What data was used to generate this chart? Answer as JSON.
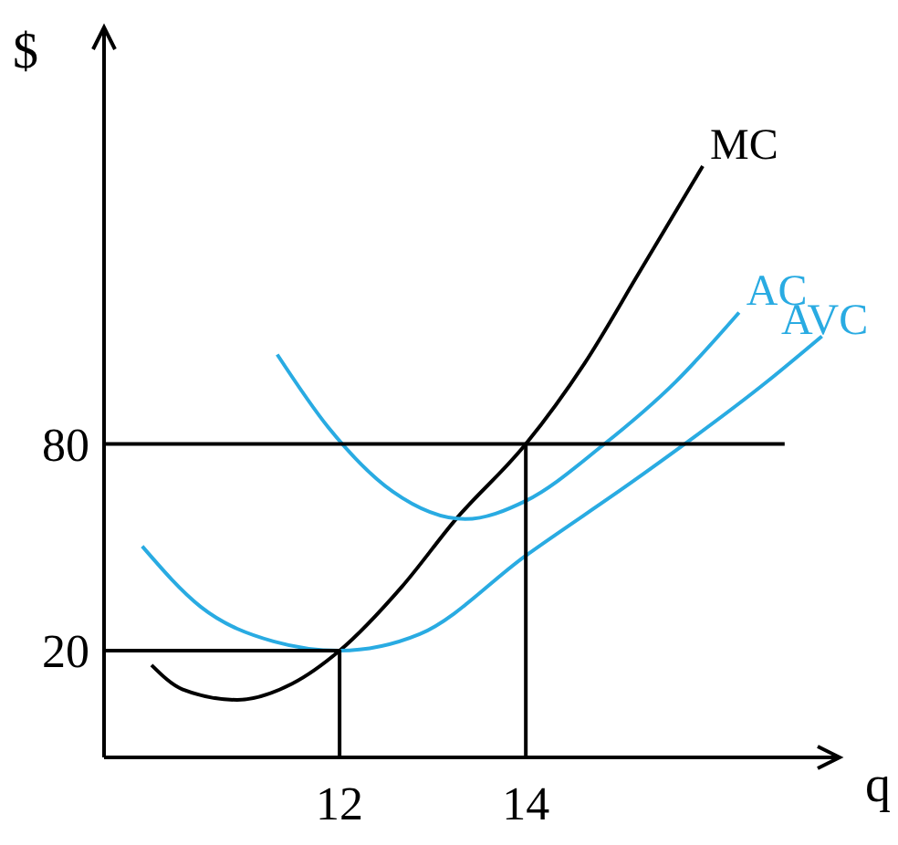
{
  "chart_data": {
    "type": "line",
    "xlabel": "q",
    "ylabel": "$",
    "xlim": [
      9.47,
      17.37
    ],
    "ylim": [
      -11,
      201
    ],
    "xticks": [
      12,
      14
    ],
    "yticks": [
      20,
      80
    ],
    "grid": false,
    "marker": "none",
    "line_style": "solid",
    "series": [
      {
        "name": "MC",
        "color": "#000000",
        "x": [
          9.98,
          10.31,
          10.9,
          11.49,
          12,
          12.67,
          13.25,
          14,
          14.63,
          15.22,
          15.9
        ],
        "values": [
          15.8,
          8.8,
          5.7,
          10.4,
          20,
          38.6,
          58.2,
          80,
          103.4,
          129.9,
          160.7
        ]
      },
      {
        "name": "AC",
        "color": "#29abe2",
        "x": [
          11.33,
          11.88,
          12.57,
          13.35,
          14,
          14.82,
          15.61,
          16.29
        ],
        "values": [
          106,
          84.8,
          66.2,
          58.2,
          63.5,
          79.5,
          98.1,
          118.2
        ]
      },
      {
        "name": "AVC",
        "color": "#29abe2",
        "x": [
          9.88,
          10.51,
          11.29,
          12,
          12.86,
          14,
          15.22,
          16.59,
          17.18
        ],
        "values": [
          50.3,
          32.7,
          22.7,
          20,
          24.8,
          47.6,
          70.5,
          98.1,
          111.3
        ]
      },
      {
        "color": "#000000",
        "x": [
          9.47,
          16.78
        ],
        "values": [
          80,
          80
        ]
      },
      {
        "color": "#000000",
        "x": [
          9.47,
          12,
          12
        ],
        "values": [
          20,
          20,
          -11
        ]
      },
      {
        "color": "#000000",
        "x": [
          14,
          14
        ],
        "values": [
          80,
          -11
        ]
      }
    ]
  }
}
